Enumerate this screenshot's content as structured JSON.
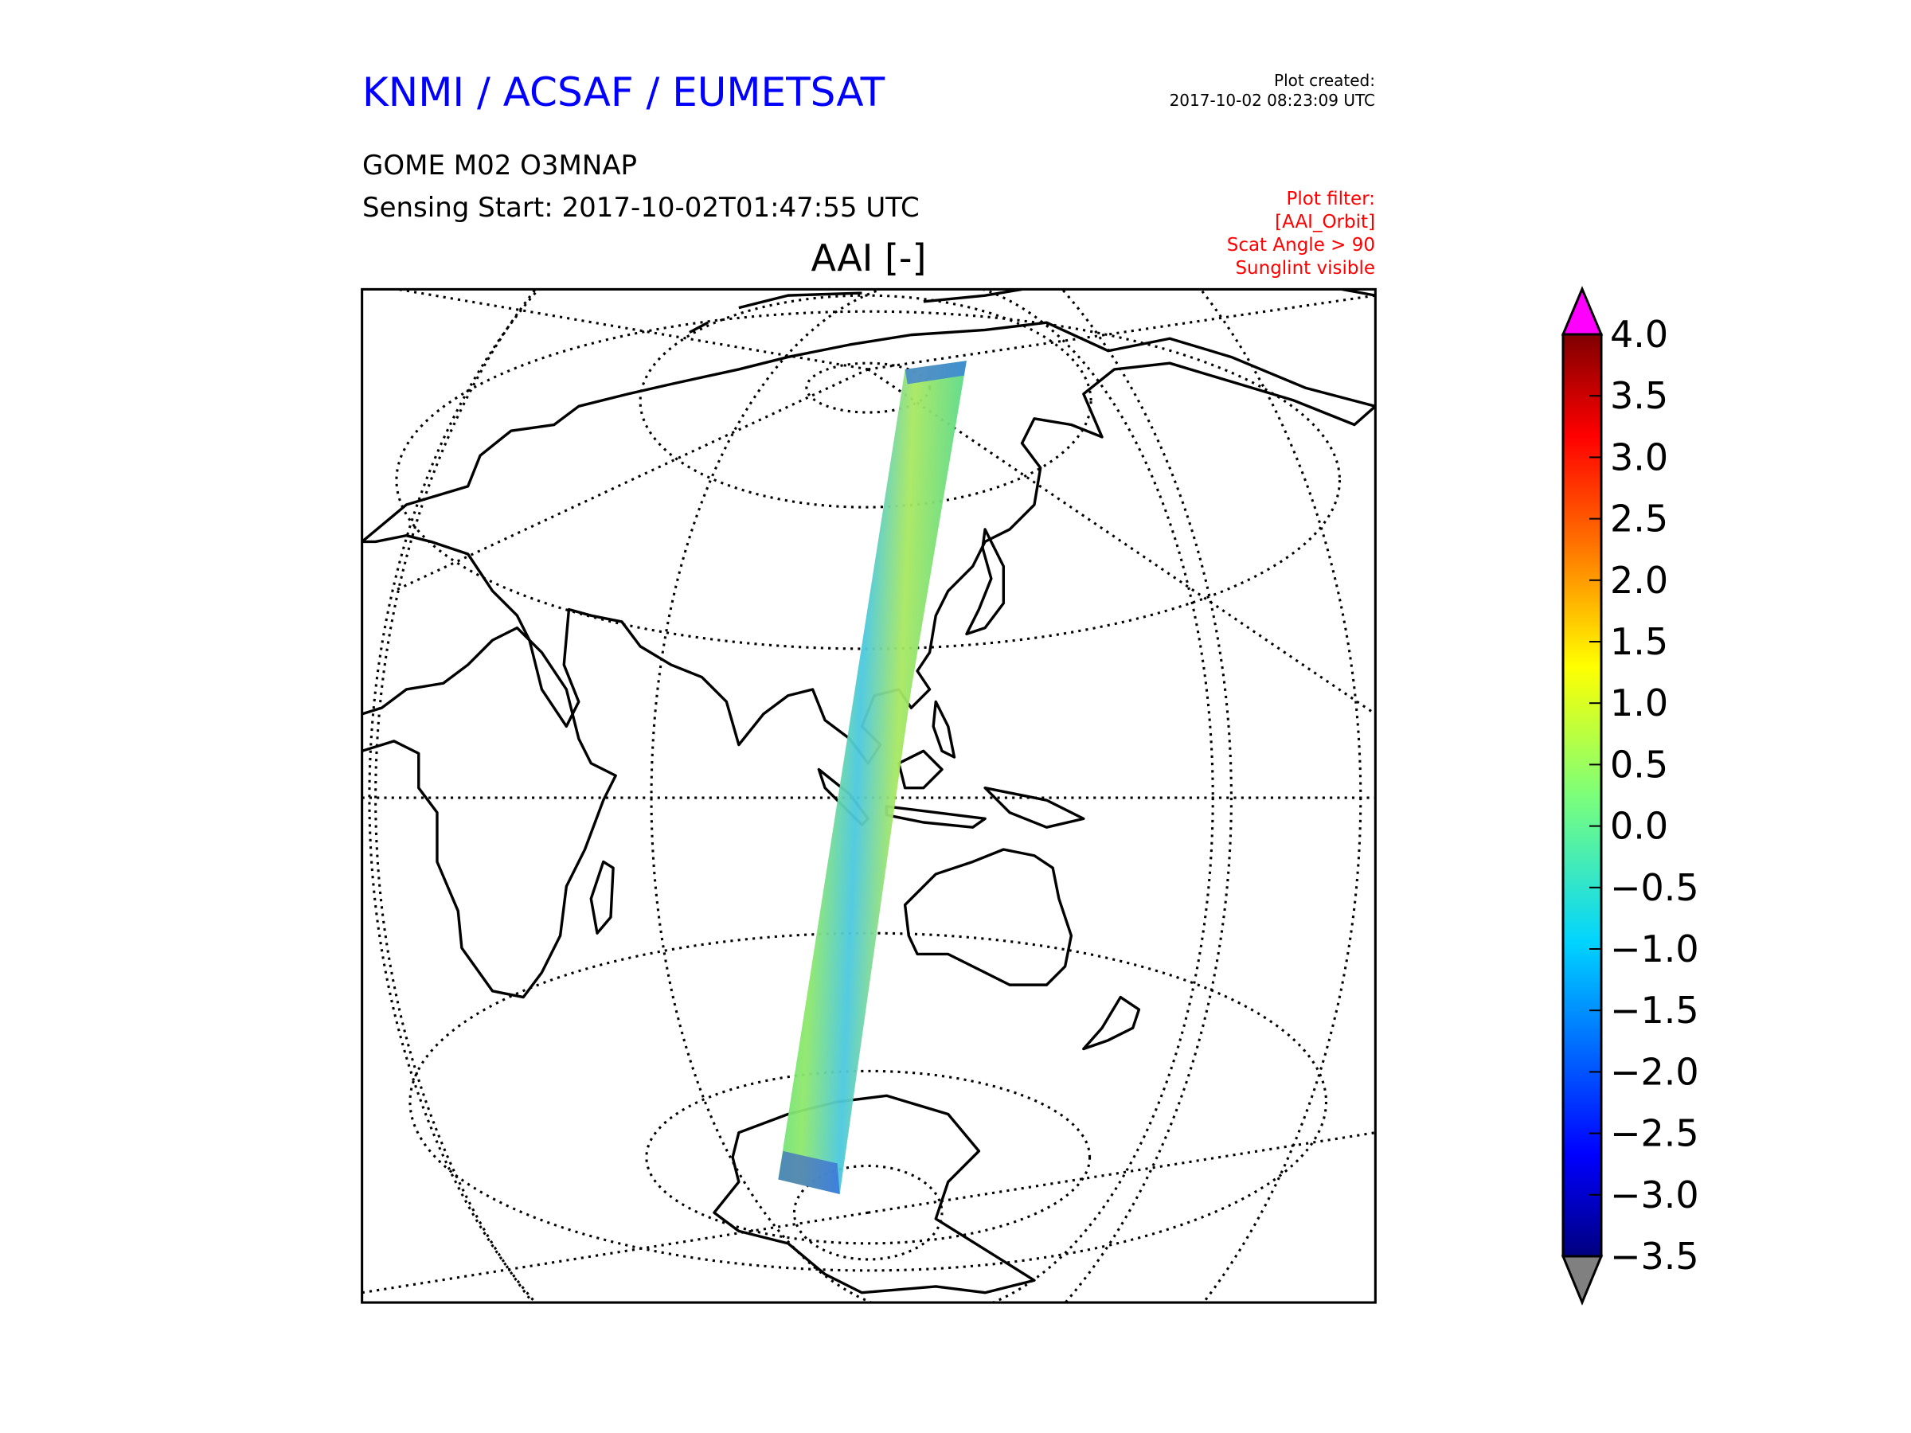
{
  "header": {
    "organisation": "KNMI / ACSAF / EUMETSAT",
    "product": "GOME M02 O3MNAP",
    "sensing_start": "Sensing Start: 2017-10-02T01:47:55 UTC",
    "plot_created_label": "Plot created:",
    "plot_created_time": "2017-10-02 08:23:09 UTC",
    "filter_lines": [
      "Plot filter:",
      "[AAI_Orbit]",
      "Scat Angle > 90",
      "Sunglint visible"
    ]
  },
  "map": {
    "title": "AAI [-]",
    "colors": {
      "title": "#0000ff",
      "filter": "#ff0000",
      "over": "#ff00ff",
      "under": "#808080"
    }
  },
  "chart_data": {
    "type": "heatmap",
    "title": "AAI [-]",
    "variable": "AAI",
    "colorbar": {
      "vmin": -3.5,
      "vmax": 4.0,
      "ticks": [
        "4.0",
        "3.5",
        "3.0",
        "2.5",
        "2.0",
        "1.5",
        "1.0",
        "0.5",
        "0.0",
        "−0.5",
        "−1.0",
        "−1.5",
        "−2.0",
        "−2.5",
        "−3.0",
        "−3.5"
      ],
      "extend": "both",
      "colormap": "jet"
    }
  }
}
